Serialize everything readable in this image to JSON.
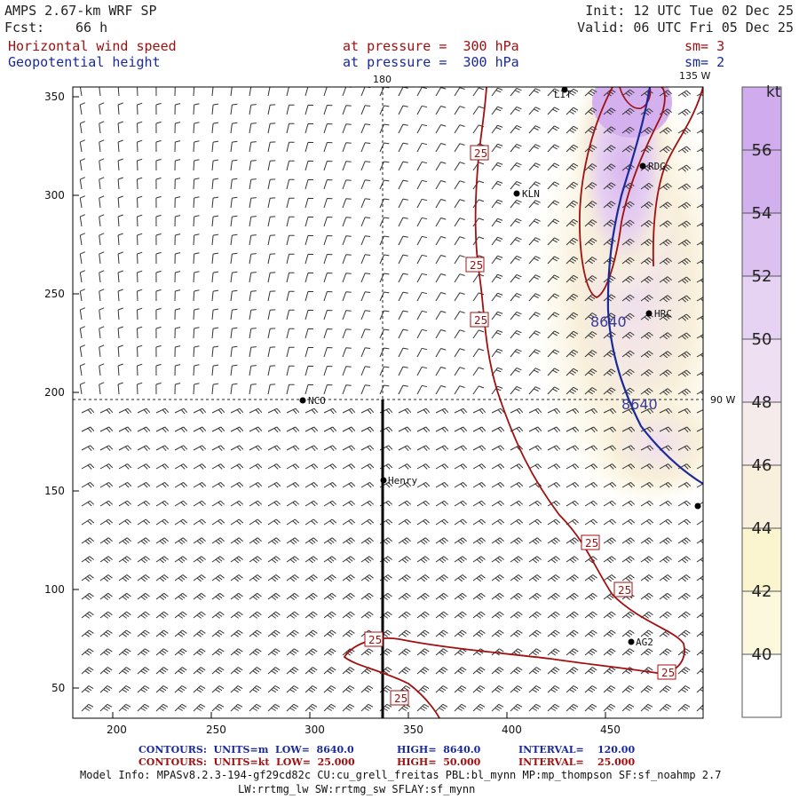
{
  "header": {
    "model": "AMPS 2.67-km WRF SP",
    "fcst_label": "Fcst:",
    "fcst_value": "66 h",
    "init": "Init: 12 UTC Tue 02 Dec 25",
    "valid": "Valid: 06 UTC Fri 05 Dec 25",
    "field1": "Horizontal wind speed",
    "field1_level": "at pressure =  300 hPa",
    "field1_sm": "sm= 3",
    "field2": "Geopotential height",
    "field2_level": "at pressure =  300 hPa",
    "field2_sm": "sm= 2"
  },
  "map": {
    "x_ticks": [
      "200",
      "250",
      "300",
      "350",
      "400",
      "450"
    ],
    "y_ticks": [
      "50",
      "100",
      "150",
      "200",
      "250",
      "300",
      "350"
    ],
    "meridian_labels": [
      "180",
      "135 W",
      "90 W"
    ],
    "contour_labels_wind": [
      "25",
      "25",
      "25",
      "25",
      "25",
      "25",
      "25",
      "25"
    ],
    "contour_labels_height": [
      "8640",
      "8640"
    ],
    "stations": [
      "LIT",
      "RDG",
      "KLN",
      "HRC",
      "NCO",
      "Henry",
      "AG2",
      ""
    ],
    "colors": {
      "wind_contour": "#a01010",
      "height_contour": "#1a2a9a",
      "cross_section": "#000000"
    }
  },
  "colorbar": {
    "unit": "kt",
    "labels": [
      "56",
      "54",
      "52",
      "50",
      "48",
      "46",
      "44",
      "42",
      "40"
    ],
    "colors": [
      "#d2b0ee",
      "#dcc0f0",
      "#e6d2f2",
      "#efdff2",
      "#f5ebea",
      "#f8f0dc",
      "#faf4cf",
      "#fcf8dd",
      "#ffffff"
    ]
  },
  "footer": {
    "line1_label": "CONTOURS:  UNITS=m  LOW=  8640.0",
    "line1_high": "HIGH=  8640.0",
    "line1_interval": "INTERVAL=    120.00",
    "line2_label": "CONTOURS:  UNITS=kt  LOW=  25.000",
    "line2_high": "HIGH=  50.000",
    "line2_interval": "INTERVAL=    25.000",
    "model_info": "Model Info: MPASv8.2.3-194-gf29cd82c CU:cu_grell_freitas PBL:bl_mynn MP:mp_thompson SF:sf_noahmp 2.7",
    "model_info2": "LW:rrtmg_lw SW:rrtmg_sw SFLAY:sf_mynn"
  }
}
